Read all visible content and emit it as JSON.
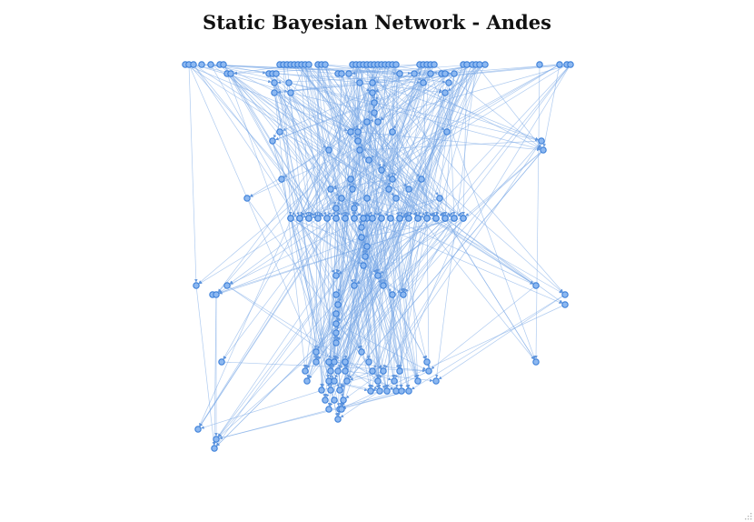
{
  "title": "Static Bayesian Network - Andes",
  "colors": {
    "node_fill": "#8db8f0",
    "node_stroke": "#3b7fd9",
    "edge": "#7aa9e6",
    "background": "#ffffff",
    "title": "#111111"
  },
  "graph": {
    "type": "directed-acyclic-graph",
    "node_count": 223
  }
}
